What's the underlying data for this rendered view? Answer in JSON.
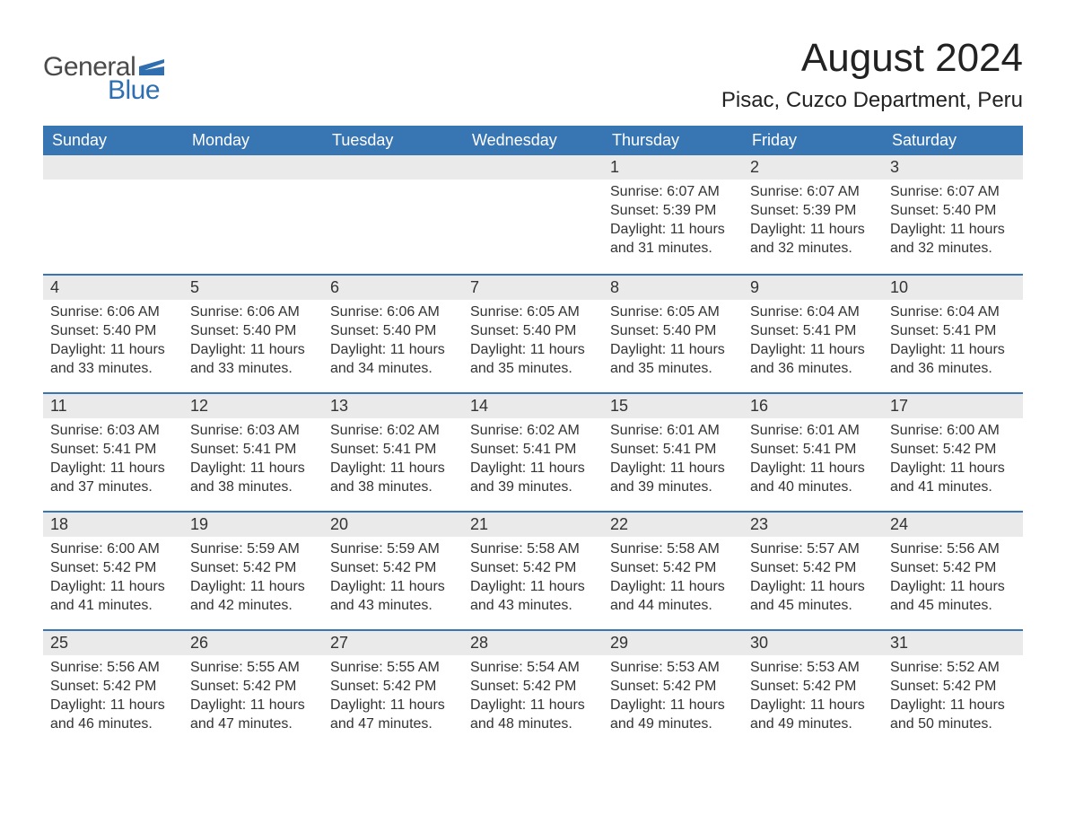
{
  "logo": {
    "text_general": "General",
    "text_blue": "Blue",
    "flag_color": "#2f6fb0",
    "general_color": "#4a4a4a",
    "blue_color": "#2f6fb0"
  },
  "header": {
    "title": "August 2024",
    "location": "Pisac, Cuzco Department, Peru"
  },
  "colors": {
    "header_bg": "#3875b3",
    "header_text": "#ffffff",
    "daynum_bg": "#eaeaea",
    "week_divider": "#3875b3",
    "body_text": "#333333",
    "background": "#ffffff"
  },
  "typography": {
    "title_fontsize": 44,
    "location_fontsize": 24,
    "dow_fontsize": 18,
    "daynum_fontsize": 18,
    "body_fontsize": 16,
    "logo_fontsize": 30
  },
  "days_of_week": [
    "Sunday",
    "Monday",
    "Tuesday",
    "Wednesday",
    "Thursday",
    "Friday",
    "Saturday"
  ],
  "weeks": [
    [
      {
        "n": "",
        "sunrise": "",
        "sunset": "",
        "daylight": ""
      },
      {
        "n": "",
        "sunrise": "",
        "sunset": "",
        "daylight": ""
      },
      {
        "n": "",
        "sunrise": "",
        "sunset": "",
        "daylight": ""
      },
      {
        "n": "",
        "sunrise": "",
        "sunset": "",
        "daylight": ""
      },
      {
        "n": "1",
        "sunrise": "Sunrise: 6:07 AM",
        "sunset": "Sunset: 5:39 PM",
        "daylight": "Daylight: 11 hours and 31 minutes."
      },
      {
        "n": "2",
        "sunrise": "Sunrise: 6:07 AM",
        "sunset": "Sunset: 5:39 PM",
        "daylight": "Daylight: 11 hours and 32 minutes."
      },
      {
        "n": "3",
        "sunrise": "Sunrise: 6:07 AM",
        "sunset": "Sunset: 5:40 PM",
        "daylight": "Daylight: 11 hours and 32 minutes."
      }
    ],
    [
      {
        "n": "4",
        "sunrise": "Sunrise: 6:06 AM",
        "sunset": "Sunset: 5:40 PM",
        "daylight": "Daylight: 11 hours and 33 minutes."
      },
      {
        "n": "5",
        "sunrise": "Sunrise: 6:06 AM",
        "sunset": "Sunset: 5:40 PM",
        "daylight": "Daylight: 11 hours and 33 minutes."
      },
      {
        "n": "6",
        "sunrise": "Sunrise: 6:06 AM",
        "sunset": "Sunset: 5:40 PM",
        "daylight": "Daylight: 11 hours and 34 minutes."
      },
      {
        "n": "7",
        "sunrise": "Sunrise: 6:05 AM",
        "sunset": "Sunset: 5:40 PM",
        "daylight": "Daylight: 11 hours and 35 minutes."
      },
      {
        "n": "8",
        "sunrise": "Sunrise: 6:05 AM",
        "sunset": "Sunset: 5:40 PM",
        "daylight": "Daylight: 11 hours and 35 minutes."
      },
      {
        "n": "9",
        "sunrise": "Sunrise: 6:04 AM",
        "sunset": "Sunset: 5:41 PM",
        "daylight": "Daylight: 11 hours and 36 minutes."
      },
      {
        "n": "10",
        "sunrise": "Sunrise: 6:04 AM",
        "sunset": "Sunset: 5:41 PM",
        "daylight": "Daylight: 11 hours and 36 minutes."
      }
    ],
    [
      {
        "n": "11",
        "sunrise": "Sunrise: 6:03 AM",
        "sunset": "Sunset: 5:41 PM",
        "daylight": "Daylight: 11 hours and 37 minutes."
      },
      {
        "n": "12",
        "sunrise": "Sunrise: 6:03 AM",
        "sunset": "Sunset: 5:41 PM",
        "daylight": "Daylight: 11 hours and 38 minutes."
      },
      {
        "n": "13",
        "sunrise": "Sunrise: 6:02 AM",
        "sunset": "Sunset: 5:41 PM",
        "daylight": "Daylight: 11 hours and 38 minutes."
      },
      {
        "n": "14",
        "sunrise": "Sunrise: 6:02 AM",
        "sunset": "Sunset: 5:41 PM",
        "daylight": "Daylight: 11 hours and 39 minutes."
      },
      {
        "n": "15",
        "sunrise": "Sunrise: 6:01 AM",
        "sunset": "Sunset: 5:41 PM",
        "daylight": "Daylight: 11 hours and 39 minutes."
      },
      {
        "n": "16",
        "sunrise": "Sunrise: 6:01 AM",
        "sunset": "Sunset: 5:41 PM",
        "daylight": "Daylight: 11 hours and 40 minutes."
      },
      {
        "n": "17",
        "sunrise": "Sunrise: 6:00 AM",
        "sunset": "Sunset: 5:42 PM",
        "daylight": "Daylight: 11 hours and 41 minutes."
      }
    ],
    [
      {
        "n": "18",
        "sunrise": "Sunrise: 6:00 AM",
        "sunset": "Sunset: 5:42 PM",
        "daylight": "Daylight: 11 hours and 41 minutes."
      },
      {
        "n": "19",
        "sunrise": "Sunrise: 5:59 AM",
        "sunset": "Sunset: 5:42 PM",
        "daylight": "Daylight: 11 hours and 42 minutes."
      },
      {
        "n": "20",
        "sunrise": "Sunrise: 5:59 AM",
        "sunset": "Sunset: 5:42 PM",
        "daylight": "Daylight: 11 hours and 43 minutes."
      },
      {
        "n": "21",
        "sunrise": "Sunrise: 5:58 AM",
        "sunset": "Sunset: 5:42 PM",
        "daylight": "Daylight: 11 hours and 43 minutes."
      },
      {
        "n": "22",
        "sunrise": "Sunrise: 5:58 AM",
        "sunset": "Sunset: 5:42 PM",
        "daylight": "Daylight: 11 hours and 44 minutes."
      },
      {
        "n": "23",
        "sunrise": "Sunrise: 5:57 AM",
        "sunset": "Sunset: 5:42 PM",
        "daylight": "Daylight: 11 hours and 45 minutes."
      },
      {
        "n": "24",
        "sunrise": "Sunrise: 5:56 AM",
        "sunset": "Sunset: 5:42 PM",
        "daylight": "Daylight: 11 hours and 45 minutes."
      }
    ],
    [
      {
        "n": "25",
        "sunrise": "Sunrise: 5:56 AM",
        "sunset": "Sunset: 5:42 PM",
        "daylight": "Daylight: 11 hours and 46 minutes."
      },
      {
        "n": "26",
        "sunrise": "Sunrise: 5:55 AM",
        "sunset": "Sunset: 5:42 PM",
        "daylight": "Daylight: 11 hours and 47 minutes."
      },
      {
        "n": "27",
        "sunrise": "Sunrise: 5:55 AM",
        "sunset": "Sunset: 5:42 PM",
        "daylight": "Daylight: 11 hours and 47 minutes."
      },
      {
        "n": "28",
        "sunrise": "Sunrise: 5:54 AM",
        "sunset": "Sunset: 5:42 PM",
        "daylight": "Daylight: 11 hours and 48 minutes."
      },
      {
        "n": "29",
        "sunrise": "Sunrise: 5:53 AM",
        "sunset": "Sunset: 5:42 PM",
        "daylight": "Daylight: 11 hours and 49 minutes."
      },
      {
        "n": "30",
        "sunrise": "Sunrise: 5:53 AM",
        "sunset": "Sunset: 5:42 PM",
        "daylight": "Daylight: 11 hours and 49 minutes."
      },
      {
        "n": "31",
        "sunrise": "Sunrise: 5:52 AM",
        "sunset": "Sunset: 5:42 PM",
        "daylight": "Daylight: 11 hours and 50 minutes."
      }
    ]
  ]
}
